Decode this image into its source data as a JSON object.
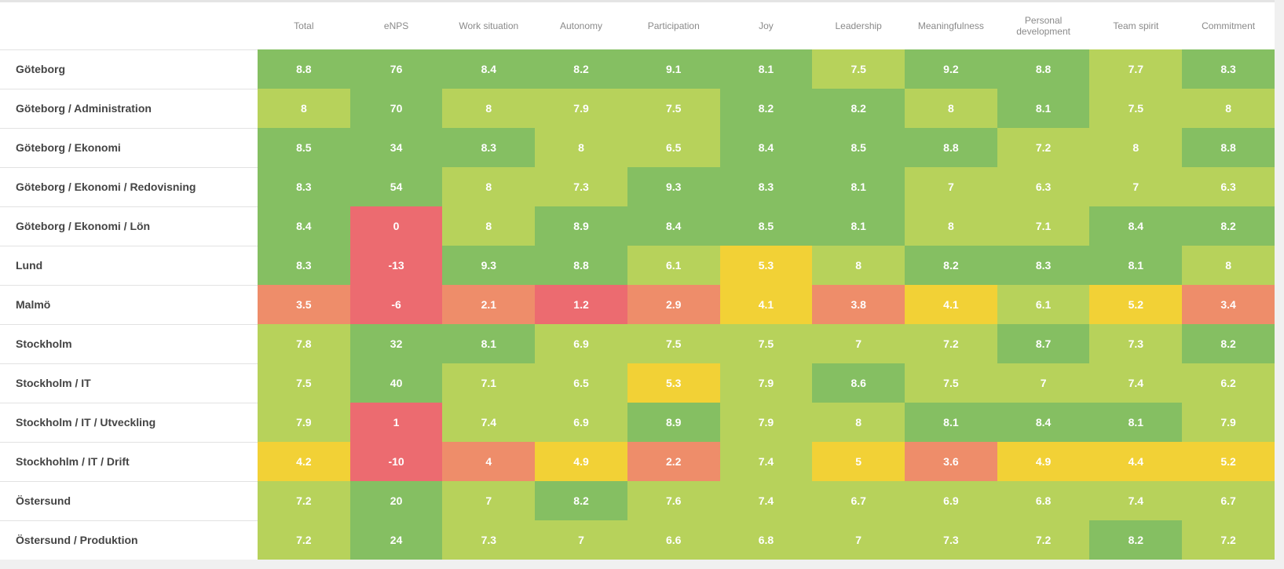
{
  "columns": [
    "Total",
    "eNPS",
    "Work situation",
    "Autonomy",
    "Participation",
    "Joy",
    "Leadership",
    "Meaningfulness",
    "Personal development",
    "Team spirit",
    "Commitment"
  ],
  "palette": {
    "dark_green": "#85bf62",
    "light_green": "#b7d25b",
    "yellow": "#f2d136",
    "orange": "#ee8d6a",
    "red": "#ec6b70"
  },
  "rows": [
    {
      "label": "Göteborg",
      "cells": [
        {
          "v": "8.8",
          "c": "dark_green"
        },
        {
          "v": "76",
          "c": "dark_green"
        },
        {
          "v": "8.4",
          "c": "dark_green"
        },
        {
          "v": "8.2",
          "c": "dark_green"
        },
        {
          "v": "9.1",
          "c": "dark_green"
        },
        {
          "v": "8.1",
          "c": "dark_green"
        },
        {
          "v": "7.5",
          "c": "light_green"
        },
        {
          "v": "9.2",
          "c": "dark_green"
        },
        {
          "v": "8.8",
          "c": "dark_green"
        },
        {
          "v": "7.7",
          "c": "light_green"
        },
        {
          "v": "8.3",
          "c": "dark_green"
        }
      ]
    },
    {
      "label": "Göteborg / Administration",
      "cells": [
        {
          "v": "8",
          "c": "light_green"
        },
        {
          "v": "70",
          "c": "dark_green"
        },
        {
          "v": "8",
          "c": "light_green"
        },
        {
          "v": "7.9",
          "c": "light_green"
        },
        {
          "v": "7.5",
          "c": "light_green"
        },
        {
          "v": "8.2",
          "c": "dark_green"
        },
        {
          "v": "8.2",
          "c": "dark_green"
        },
        {
          "v": "8",
          "c": "light_green"
        },
        {
          "v": "8.1",
          "c": "dark_green"
        },
        {
          "v": "7.5",
          "c": "light_green"
        },
        {
          "v": "8",
          "c": "light_green"
        }
      ]
    },
    {
      "label": "Göteborg / Ekonomi",
      "cells": [
        {
          "v": "8.5",
          "c": "dark_green"
        },
        {
          "v": "34",
          "c": "dark_green"
        },
        {
          "v": "8.3",
          "c": "dark_green"
        },
        {
          "v": "8",
          "c": "light_green"
        },
        {
          "v": "6.5",
          "c": "light_green"
        },
        {
          "v": "8.4",
          "c": "dark_green"
        },
        {
          "v": "8.5",
          "c": "dark_green"
        },
        {
          "v": "8.8",
          "c": "dark_green"
        },
        {
          "v": "7.2",
          "c": "light_green"
        },
        {
          "v": "8",
          "c": "light_green"
        },
        {
          "v": "8.8",
          "c": "dark_green"
        }
      ]
    },
    {
      "label": "Göteborg / Ekonomi / Redovisning",
      "cells": [
        {
          "v": "8.3",
          "c": "dark_green"
        },
        {
          "v": "54",
          "c": "dark_green"
        },
        {
          "v": "8",
          "c": "light_green"
        },
        {
          "v": "7.3",
          "c": "light_green"
        },
        {
          "v": "9.3",
          "c": "dark_green"
        },
        {
          "v": "8.3",
          "c": "dark_green"
        },
        {
          "v": "8.1",
          "c": "dark_green"
        },
        {
          "v": "7",
          "c": "light_green"
        },
        {
          "v": "6.3",
          "c": "light_green"
        },
        {
          "v": "7",
          "c": "light_green"
        },
        {
          "v": "6.3",
          "c": "light_green"
        }
      ]
    },
    {
      "label": "Göteborg / Ekonomi / Lön",
      "cells": [
        {
          "v": "8.4",
          "c": "dark_green"
        },
        {
          "v": "0",
          "c": "red"
        },
        {
          "v": "8",
          "c": "light_green"
        },
        {
          "v": "8.9",
          "c": "dark_green"
        },
        {
          "v": "8.4",
          "c": "dark_green"
        },
        {
          "v": "8.5",
          "c": "dark_green"
        },
        {
          "v": "8.1",
          "c": "dark_green"
        },
        {
          "v": "8",
          "c": "light_green"
        },
        {
          "v": "7.1",
          "c": "light_green"
        },
        {
          "v": "8.4",
          "c": "dark_green"
        },
        {
          "v": "8.2",
          "c": "dark_green"
        }
      ]
    },
    {
      "label": "Lund",
      "cells": [
        {
          "v": "8.3",
          "c": "dark_green"
        },
        {
          "v": "-13",
          "c": "red"
        },
        {
          "v": "9.3",
          "c": "dark_green"
        },
        {
          "v": "8.8",
          "c": "dark_green"
        },
        {
          "v": "6.1",
          "c": "light_green"
        },
        {
          "v": "5.3",
          "c": "yellow"
        },
        {
          "v": "8",
          "c": "light_green"
        },
        {
          "v": "8.2",
          "c": "dark_green"
        },
        {
          "v": "8.3",
          "c": "dark_green"
        },
        {
          "v": "8.1",
          "c": "dark_green"
        },
        {
          "v": "8",
          "c": "light_green"
        }
      ]
    },
    {
      "label": "Malmö",
      "cells": [
        {
          "v": "3.5",
          "c": "orange"
        },
        {
          "v": "-6",
          "c": "red"
        },
        {
          "v": "2.1",
          "c": "orange"
        },
        {
          "v": "1.2",
          "c": "red"
        },
        {
          "v": "2.9",
          "c": "orange"
        },
        {
          "v": "4.1",
          "c": "yellow"
        },
        {
          "v": "3.8",
          "c": "orange"
        },
        {
          "v": "4.1",
          "c": "yellow"
        },
        {
          "v": "6.1",
          "c": "light_green"
        },
        {
          "v": "5.2",
          "c": "yellow"
        },
        {
          "v": "3.4",
          "c": "orange"
        }
      ]
    },
    {
      "label": "Stockholm",
      "cells": [
        {
          "v": "7.8",
          "c": "light_green"
        },
        {
          "v": "32",
          "c": "dark_green"
        },
        {
          "v": "8.1",
          "c": "dark_green"
        },
        {
          "v": "6.9",
          "c": "light_green"
        },
        {
          "v": "7.5",
          "c": "light_green"
        },
        {
          "v": "7.5",
          "c": "light_green"
        },
        {
          "v": "7",
          "c": "light_green"
        },
        {
          "v": "7.2",
          "c": "light_green"
        },
        {
          "v": "8.7",
          "c": "dark_green"
        },
        {
          "v": "7.3",
          "c": "light_green"
        },
        {
          "v": "8.2",
          "c": "dark_green"
        }
      ]
    },
    {
      "label": "Stockholm / IT",
      "cells": [
        {
          "v": "7.5",
          "c": "light_green"
        },
        {
          "v": "40",
          "c": "dark_green"
        },
        {
          "v": "7.1",
          "c": "light_green"
        },
        {
          "v": "6.5",
          "c": "light_green"
        },
        {
          "v": "5.3",
          "c": "yellow"
        },
        {
          "v": "7.9",
          "c": "light_green"
        },
        {
          "v": "8.6",
          "c": "dark_green"
        },
        {
          "v": "7.5",
          "c": "light_green"
        },
        {
          "v": "7",
          "c": "light_green"
        },
        {
          "v": "7.4",
          "c": "light_green"
        },
        {
          "v": "6.2",
          "c": "light_green"
        }
      ]
    },
    {
      "label": "Stockholm / IT / Utveckling",
      "cells": [
        {
          "v": "7.9",
          "c": "light_green"
        },
        {
          "v": "1",
          "c": "red"
        },
        {
          "v": "7.4",
          "c": "light_green"
        },
        {
          "v": "6.9",
          "c": "light_green"
        },
        {
          "v": "8.9",
          "c": "dark_green"
        },
        {
          "v": "7.9",
          "c": "light_green"
        },
        {
          "v": "8",
          "c": "light_green"
        },
        {
          "v": "8.1",
          "c": "dark_green"
        },
        {
          "v": "8.4",
          "c": "dark_green"
        },
        {
          "v": "8.1",
          "c": "dark_green"
        },
        {
          "v": "7.9",
          "c": "light_green"
        }
      ]
    },
    {
      "label": "Stockhohlm / IT / Drift",
      "cells": [
        {
          "v": "4.2",
          "c": "yellow"
        },
        {
          "v": "-10",
          "c": "red"
        },
        {
          "v": "4",
          "c": "orange"
        },
        {
          "v": "4.9",
          "c": "yellow"
        },
        {
          "v": "2.2",
          "c": "orange"
        },
        {
          "v": "7.4",
          "c": "light_green"
        },
        {
          "v": "5",
          "c": "yellow"
        },
        {
          "v": "3.6",
          "c": "orange"
        },
        {
          "v": "4.9",
          "c": "yellow"
        },
        {
          "v": "4.4",
          "c": "yellow"
        },
        {
          "v": "5.2",
          "c": "yellow"
        }
      ]
    },
    {
      "label": "Östersund",
      "cells": [
        {
          "v": "7.2",
          "c": "light_green"
        },
        {
          "v": "20",
          "c": "dark_green"
        },
        {
          "v": "7",
          "c": "light_green"
        },
        {
          "v": "8.2",
          "c": "dark_green"
        },
        {
          "v": "7.6",
          "c": "light_green"
        },
        {
          "v": "7.4",
          "c": "light_green"
        },
        {
          "v": "6.7",
          "c": "light_green"
        },
        {
          "v": "6.9",
          "c": "light_green"
        },
        {
          "v": "6.8",
          "c": "light_green"
        },
        {
          "v": "7.4",
          "c": "light_green"
        },
        {
          "v": "6.7",
          "c": "light_green"
        }
      ]
    },
    {
      "label": "Östersund / Produktion",
      "cells": [
        {
          "v": "7.2",
          "c": "light_green"
        },
        {
          "v": "24",
          "c": "dark_green"
        },
        {
          "v": "7.3",
          "c": "light_green"
        },
        {
          "v": "7",
          "c": "light_green"
        },
        {
          "v": "6.6",
          "c": "light_green"
        },
        {
          "v": "6.8",
          "c": "light_green"
        },
        {
          "v": "7",
          "c": "light_green"
        },
        {
          "v": "7.3",
          "c": "light_green"
        },
        {
          "v": "7.2",
          "c": "light_green"
        },
        {
          "v": "8.2",
          "c": "dark_green"
        },
        {
          "v": "7.2",
          "c": "light_green"
        }
      ]
    }
  ]
}
